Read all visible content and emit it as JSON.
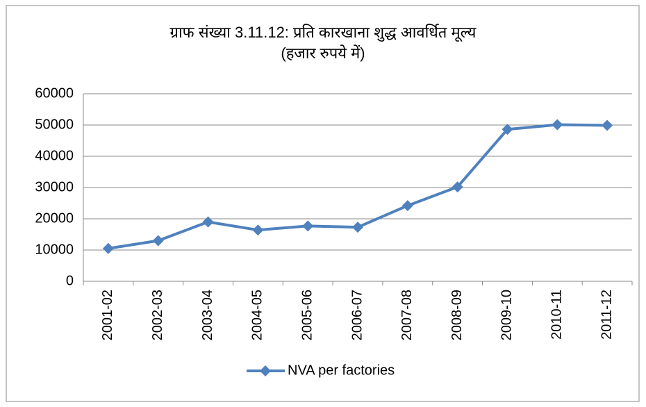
{
  "chart_data": {
    "type": "line",
    "title": "ग्राफ संख्या 3.11.12: प्रति कारखाना शुद्ध आवर्धित मूल्य",
    "subtitle": "(हजार रुपये में)",
    "categories": [
      "2001-02",
      "2002-03",
      "2003-04",
      "2004-05",
      "2005-06",
      "2006-07",
      "2007-08",
      "2008-09",
      "2009-10",
      "2010-11",
      "2011-12"
    ],
    "series": [
      {
        "name": "NVA per factories",
        "color": "#4f81bd",
        "values": [
          10500,
          13000,
          19000,
          16400,
          17700,
          17300,
          24200,
          30200,
          48600,
          50100,
          49900
        ]
      }
    ],
    "ylim": [
      0,
      60000
    ],
    "yticks": [
      0,
      10000,
      20000,
      30000,
      40000,
      50000,
      60000
    ],
    "grid": true,
    "legend": "bottom"
  }
}
